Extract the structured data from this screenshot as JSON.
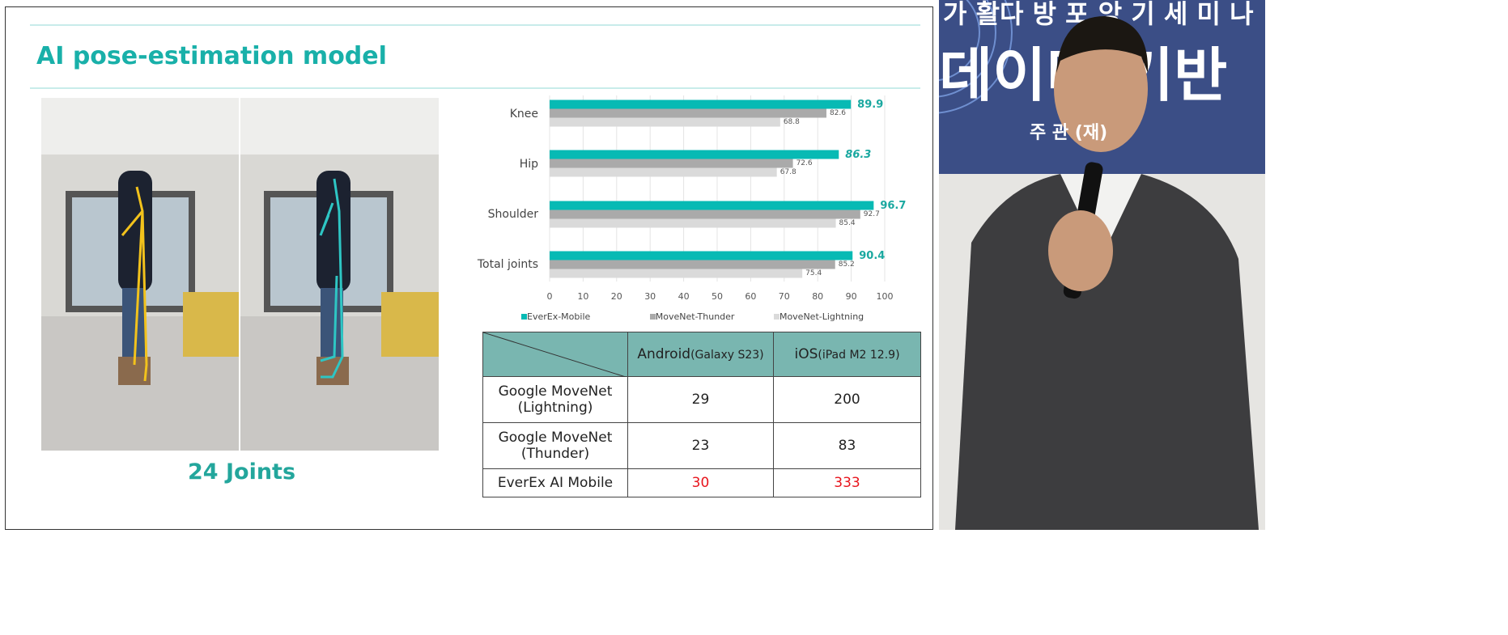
{
  "slide": {
    "title": "AI pose-estimation model",
    "caption": "24 Joints"
  },
  "chart_data": {
    "type": "bar",
    "orientation": "horizontal",
    "categories": [
      "Knee",
      "Hip",
      "Shoulder",
      "Total joints"
    ],
    "series": [
      {
        "name": "EverEx-Mobile",
        "color": "#07bab4",
        "values": [
          89.9,
          86.3,
          96.7,
          90.4
        ]
      },
      {
        "name": "MoveNet-Thunder",
        "color": "#aaaaaa",
        "values": [
          82.6,
          72.6,
          92.7,
          85.2
        ]
      },
      {
        "name": "MoveNet-Lightning",
        "color": "#dadada",
        "values": [
          68.8,
          67.8,
          85.4,
          75.4
        ]
      }
    ],
    "value_labels": {
      "EverEx-Mobile": [
        "89.9",
        "86.3",
        "96.7",
        "90.4"
      ],
      "MoveNet-Thunder": [
        "82.6",
        "72.6",
        "92.7",
        "85.2"
      ],
      "MoveNet-Lightning": [
        "68.8",
        "67.8",
        "85.4",
        "75.4"
      ]
    },
    "xlim": [
      0,
      100
    ],
    "xticks": [
      "0",
      "10",
      "20",
      "30",
      "40",
      "50",
      "60",
      "70",
      "80",
      "90",
      "100"
    ],
    "grid": true,
    "legend": "bottom"
  },
  "table": {
    "headers": [
      "",
      "Android",
      "(Galaxy S23)",
      "iOS",
      "(iPad M2 12.9)"
    ],
    "rows": [
      {
        "name": "Google MoveNet (Lightning)",
        "l1": "Google MoveNet",
        "l2": "(Lightning)",
        "android": "29",
        "ios": "200"
      },
      {
        "name": "Google MoveNet (Thunder)",
        "l1": "Google MoveNet",
        "l2": "(Thunder)",
        "android": "23",
        "ios": "83"
      },
      {
        "name": "EverEx AI Mobile",
        "l1": "EverEx AI Mobile",
        "l2": "",
        "android": "30",
        "ios": "333"
      }
    ]
  },
  "photo": {
    "banner_text": "주 관 (재)"
  }
}
